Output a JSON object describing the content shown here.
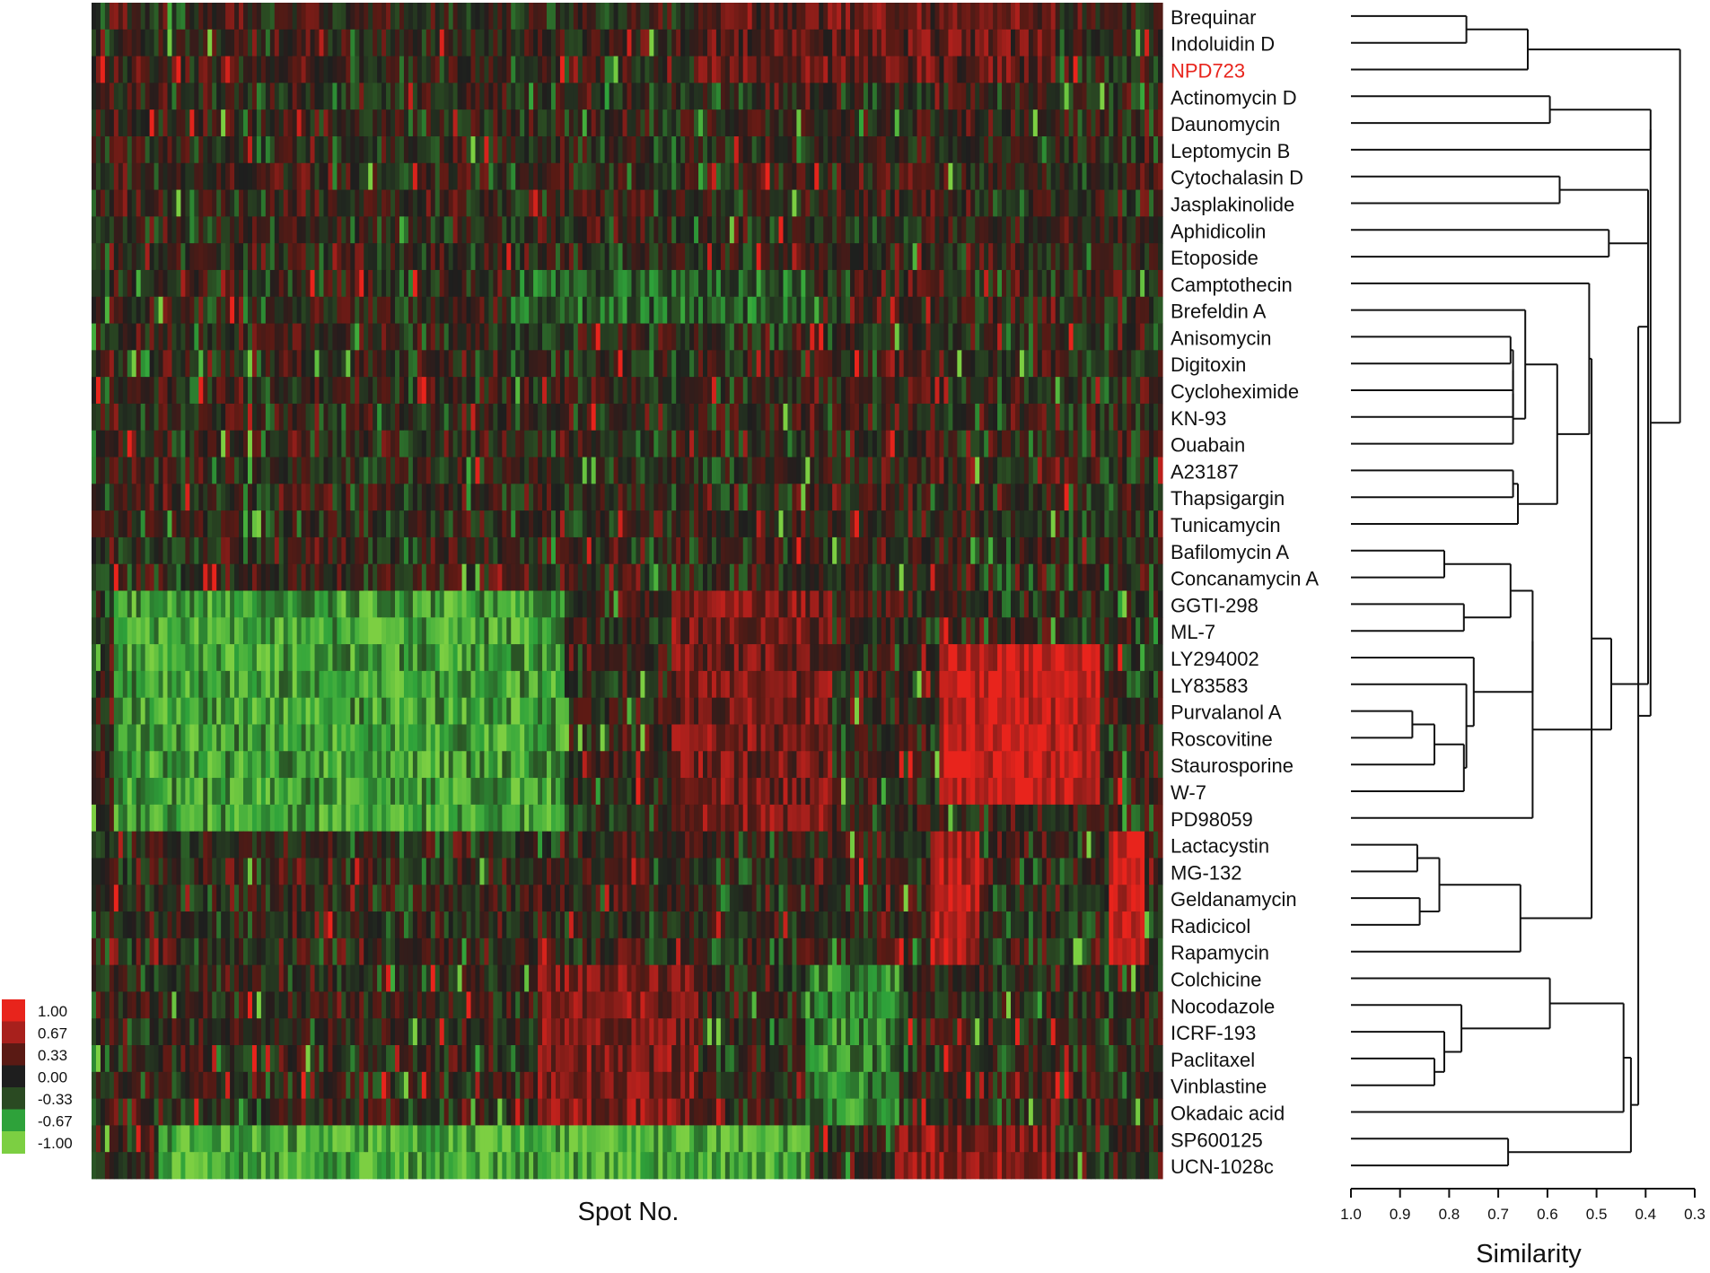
{
  "chart_data": {
    "type": "heatmap",
    "title": "",
    "xlabel": "Spot No.",
    "ylabel": "",
    "highlight_color": "#e8241c",
    "highlighted_compound": "NPD723",
    "rows": [
      "Brequinar",
      "Indoluidin D",
      "NPD723",
      "Actinomycin D",
      "Daunomycin",
      "Leptomycin B",
      "Cytochalasin D",
      "Jasplakinolide",
      "Aphidicolin",
      "Etoposide",
      "Camptothecin",
      "Brefeldin A",
      "Anisomycin",
      "Digitoxin",
      "Cycloheximide",
      "KN-93",
      "Ouabain",
      "A23187",
      "Thapsigargin",
      "Tunicamycin",
      "Bafilomycin A",
      "Concanamycin A",
      "GGTI-298",
      "ML-7",
      "LY294002",
      "LY83583",
      "Purvalanol A",
      "Roscovitine",
      "Staurosporine",
      "W-7",
      "PD98059",
      "Lactacystin",
      "MG-132",
      "Geldanamycin",
      "Radicicol",
      "Rapamycin",
      "Colchicine",
      "Nocodazole",
      "ICRF-193",
      "Paclitaxel",
      "Vinblastine",
      "Okadaic acid",
      "SP600125",
      "UCN-1028c"
    ],
    "n_spots": 240,
    "colorbar": {
      "range": [
        -1.0,
        1.0
      ],
      "ticks": [
        "1.00",
        "0.67",
        "0.33",
        "0.00",
        "-0.33",
        "-0.67",
        "-1.00"
      ],
      "colors": [
        "#e8241c",
        "#a8201c",
        "#5a1a14",
        "#1e1e1e",
        "#2a4a22",
        "#2ea23a",
        "#7ccf42"
      ]
    },
    "cluster_pattern": {
      "value_scale": "log2 relative spot intensity (-1 green, +1 red)",
      "blocks": [
        {
          "rows": [
            0,
            2
          ],
          "spots": [
            135,
            215
          ],
          "mean": 0.35
        },
        {
          "rows": [
            10,
            11
          ],
          "spots": [
            95,
            160
          ],
          "mean": -0.4
        },
        {
          "rows": [
            22,
            30
          ],
          "spots": [
            5,
            105
          ],
          "mean": -0.7
        },
        {
          "rows": [
            22,
            30
          ],
          "spots": [
            130,
            165
          ],
          "mean": 0.45
        },
        {
          "rows": [
            24,
            29
          ],
          "spots": [
            190,
            225
          ],
          "mean": 0.85
        },
        {
          "rows": [
            31,
            35
          ],
          "spots": [
            188,
            198
          ],
          "mean": 0.75
        },
        {
          "rows": [
            31,
            35
          ],
          "spots": [
            228,
            235
          ],
          "mean": 0.9
        },
        {
          "rows": [
            36,
            41
          ],
          "spots": [
            100,
            135
          ],
          "mean": 0.5
        },
        {
          "rows": [
            36,
            41
          ],
          "spots": [
            160,
            180
          ],
          "mean": -0.55
        },
        {
          "rows": [
            42,
            43
          ],
          "spots": [
            15,
            160
          ],
          "mean": -0.75
        },
        {
          "rows": [
            42,
            43
          ],
          "spots": [
            180,
            215
          ],
          "mean": 0.55
        }
      ]
    },
    "dendrogram": {
      "xlabel": "Similarity",
      "xlim": [
        1.0,
        0.3
      ],
      "ticks": [
        1.0,
        0.9,
        0.8,
        0.7,
        0.6,
        0.5,
        0.4,
        0.3
      ],
      "tick_labels": [
        "1.0",
        "0.9",
        "0.8",
        "0.7",
        "0.6",
        "0.5",
        "0.4",
        "0.3"
      ],
      "merges": [
        {
          "a": [
            0
          ],
          "b": [
            1
          ],
          "sim": 0.765
        },
        {
          "a": [
            0,
            1
          ],
          "b": [
            2
          ],
          "sim": 0.64
        },
        {
          "a": [
            3
          ],
          "b": [
            4
          ],
          "sim": 0.595
        },
        {
          "a": [
            3,
            4
          ],
          "b": [
            5
          ],
          "sim": 0.39
        },
        {
          "a": [
            6
          ],
          "b": [
            7
          ],
          "sim": 0.575
        },
        {
          "a": [
            8
          ],
          "b": [
            9
          ],
          "sim": 0.475
        },
        {
          "a": [
            12
          ],
          "b": [
            13
          ],
          "sim": 0.675
        },
        {
          "a": [
            12,
            13
          ],
          "b": [
            14
          ],
          "sim": 0.67
        },
        {
          "a": [
            12,
            13,
            14
          ],
          "b": [
            15
          ],
          "sim": 0.67
        },
        {
          "a": [
            12,
            13,
            14,
            15
          ],
          "b": [
            16
          ],
          "sim": 0.67
        },
        {
          "a": [
            11
          ],
          "b": [
            12,
            13,
            14,
            15,
            16
          ],
          "sim": 0.645
        },
        {
          "a": [
            17
          ],
          "b": [
            18
          ],
          "sim": 0.67
        },
        {
          "a": [
            17,
            18
          ],
          "b": [
            19
          ],
          "sim": 0.66
        },
        {
          "a": [
            11,
            12,
            13,
            14,
            15,
            16
          ],
          "b": [
            17,
            18,
            19
          ],
          "sim": 0.58
        },
        {
          "a": [
            10
          ],
          "b": [
            11,
            12,
            13,
            14,
            15,
            16,
            17,
            18,
            19
          ],
          "sim": 0.515
        },
        {
          "a": [
            20
          ],
          "b": [
            21
          ],
          "sim": 0.81
        },
        {
          "a": [
            22
          ],
          "b": [
            23
          ],
          "sim": 0.77
        },
        {
          "a": [
            20,
            21
          ],
          "b": [
            22,
            23
          ],
          "sim": 0.675
        },
        {
          "a": [
            26
          ],
          "b": [
            27
          ],
          "sim": 0.875
        },
        {
          "a": [
            26,
            27
          ],
          "b": [
            28
          ],
          "sim": 0.83
        },
        {
          "a": [
            26,
            27,
            28
          ],
          "b": [
            29
          ],
          "sim": 0.77
        },
        {
          "a": [
            25
          ],
          "b": [
            26,
            27,
            28,
            29
          ],
          "sim": 0.765
        },
        {
          "a": [
            24
          ],
          "b": [
            25,
            26,
            27,
            28,
            29
          ],
          "sim": 0.75
        },
        {
          "a": [
            20,
            21,
            22,
            23
          ],
          "b": [
            24,
            25,
            26,
            27,
            28,
            29
          ],
          "sim": 0.63
        },
        {
          "a": [
            20,
            21,
            22,
            23,
            24,
            25,
            26,
            27,
            28,
            29
          ],
          "b": [
            30
          ],
          "sim": 0.63
        },
        {
          "a": [
            31
          ],
          "b": [
            32
          ],
          "sim": 0.865
        },
        {
          "a": [
            33
          ],
          "b": [
            34
          ],
          "sim": 0.86
        },
        {
          "a": [
            31,
            32
          ],
          "b": [
            33,
            34
          ],
          "sim": 0.82
        },
        {
          "a": [
            31,
            32,
            33,
            34
          ],
          "b": [
            35
          ],
          "sim": 0.655
        },
        {
          "a": [
            10,
            11,
            12,
            13,
            14,
            15,
            16,
            17,
            18,
            19
          ],
          "b": [
            31,
            32,
            33,
            34,
            35
          ],
          "sim": 0.51
        },
        {
          "a": [
            10,
            11,
            12,
            13,
            14,
            15,
            16,
            17,
            18,
            19,
            31,
            32,
            33,
            34,
            35
          ],
          "b": [
            20,
            21,
            22,
            23,
            24,
            25,
            26,
            27,
            28,
            29,
            30
          ],
          "sim": 0.47
        },
        {
          "a": [
            8,
            9
          ],
          "b": [
            10,
            11,
            12,
            13,
            14,
            15,
            16,
            17,
            18,
            19,
            20,
            21,
            22,
            23,
            24,
            25,
            26,
            27,
            28,
            29,
            30,
            31,
            32,
            33,
            34,
            35
          ],
          "sim": 0.395
        },
        {
          "a": [
            6,
            7
          ],
          "b": [
            8,
            9,
            10,
            11,
            12,
            13,
            14,
            15,
            16,
            17,
            18,
            19,
            20,
            21,
            22,
            23,
            24,
            25,
            26,
            27,
            28,
            29,
            30,
            31,
            32,
            33,
            34,
            35
          ],
          "sim": 0.395
        },
        {
          "a": [
            39
          ],
          "b": [
            40
          ],
          "sim": 0.83
        },
        {
          "a": [
            38
          ],
          "b": [
            39,
            40
          ],
          "sim": 0.81
        },
        {
          "a": [
            37
          ],
          "b": [
            38,
            39,
            40
          ],
          "sim": 0.775
        },
        {
          "a": [
            36
          ],
          "b": [
            37,
            38,
            39,
            40
          ],
          "sim": 0.595
        },
        {
          "a": [
            36,
            37,
            38,
            39,
            40
          ],
          "b": [
            41
          ],
          "sim": 0.445
        },
        {
          "a": [
            42
          ],
          "b": [
            43
          ],
          "sim": 0.68
        },
        {
          "a": [
            36,
            37,
            38,
            39,
            40,
            41
          ],
          "b": [
            42,
            43
          ],
          "sim": 0.43
        },
        {
          "a": [
            6,
            7,
            8,
            9,
            10,
            11,
            12,
            13,
            14,
            15,
            16,
            17,
            18,
            19,
            20,
            21,
            22,
            23,
            24,
            25,
            26,
            27,
            28,
            29,
            30,
            31,
            32,
            33,
            34,
            35
          ],
          "b": [
            36,
            37,
            38,
            39,
            40,
            41,
            42,
            43
          ],
          "sim": 0.415
        },
        {
          "a": [
            3,
            4,
            5
          ],
          "b": [
            6,
            7,
            8,
            9,
            10,
            11,
            12,
            13,
            14,
            15,
            16,
            17,
            18,
            19,
            20,
            21,
            22,
            23,
            24,
            25,
            26,
            27,
            28,
            29,
            30,
            31,
            32,
            33,
            34,
            35,
            36,
            37,
            38,
            39,
            40,
            41,
            42,
            43
          ],
          "sim": 0.39
        },
        {
          "a": [
            0,
            1,
            2
          ],
          "b": [
            3,
            4,
            5,
            6,
            7,
            8,
            9,
            10,
            11,
            12,
            13,
            14,
            15,
            16,
            17,
            18,
            19,
            20,
            21,
            22,
            23,
            24,
            25,
            26,
            27,
            28,
            29,
            30,
            31,
            32,
            33,
            34,
            35,
            36,
            37,
            38,
            39,
            40,
            41,
            42,
            43
          ],
          "sim": 0.33
        }
      ]
    }
  }
}
